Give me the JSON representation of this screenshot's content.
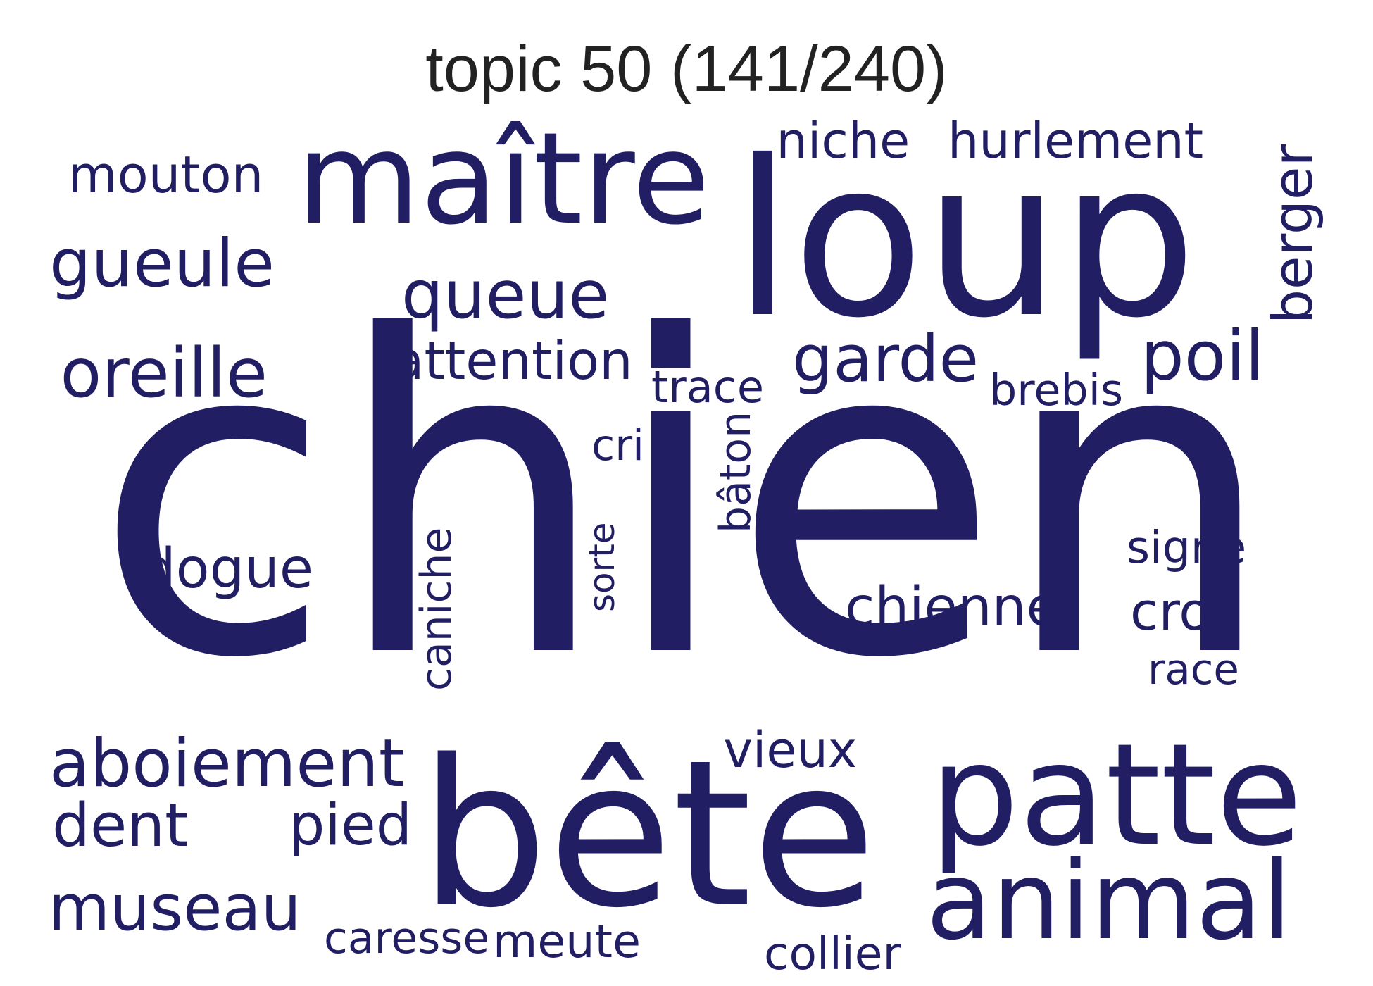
{
  "title": "topic 50 (141/240)",
  "word_color": "#211e63",
  "words": [
    {
      "text": "chien",
      "rotated": false
    },
    {
      "text": "loup",
      "rotated": false
    },
    {
      "text": "maître",
      "rotated": false
    },
    {
      "text": "bête",
      "rotated": false
    },
    {
      "text": "patte",
      "rotated": false
    },
    {
      "text": "animal",
      "rotated": false
    },
    {
      "text": "niche",
      "rotated": false
    },
    {
      "text": "hurlement",
      "rotated": false
    },
    {
      "text": "mouton",
      "rotated": false
    },
    {
      "text": "berger",
      "rotated": true
    },
    {
      "text": "gueule",
      "rotated": false
    },
    {
      "text": "queue",
      "rotated": false
    },
    {
      "text": "oreille",
      "rotated": false
    },
    {
      "text": "attention",
      "rotated": false
    },
    {
      "text": "garde",
      "rotated": false
    },
    {
      "text": "poil",
      "rotated": false
    },
    {
      "text": "trace",
      "rotated": false
    },
    {
      "text": "brebis",
      "rotated": false
    },
    {
      "text": "cri",
      "rotated": false
    },
    {
      "text": "bâton",
      "rotated": true
    },
    {
      "text": "dogue",
      "rotated": false
    },
    {
      "text": "caniche",
      "rotated": true
    },
    {
      "text": "sorte",
      "rotated": true
    },
    {
      "text": "signe",
      "rotated": false
    },
    {
      "text": "chienne",
      "rotated": false
    },
    {
      "text": "croc",
      "rotated": false
    },
    {
      "text": "race",
      "rotated": false
    },
    {
      "text": "aboiement",
      "rotated": false
    },
    {
      "text": "vieux",
      "rotated": false
    },
    {
      "text": "dent",
      "rotated": false
    },
    {
      "text": "pied",
      "rotated": false
    },
    {
      "text": "museau",
      "rotated": false
    },
    {
      "text": "caresse",
      "rotated": false
    },
    {
      "text": "meute",
      "rotated": false
    },
    {
      "text": "collier",
      "rotated": false
    }
  ]
}
